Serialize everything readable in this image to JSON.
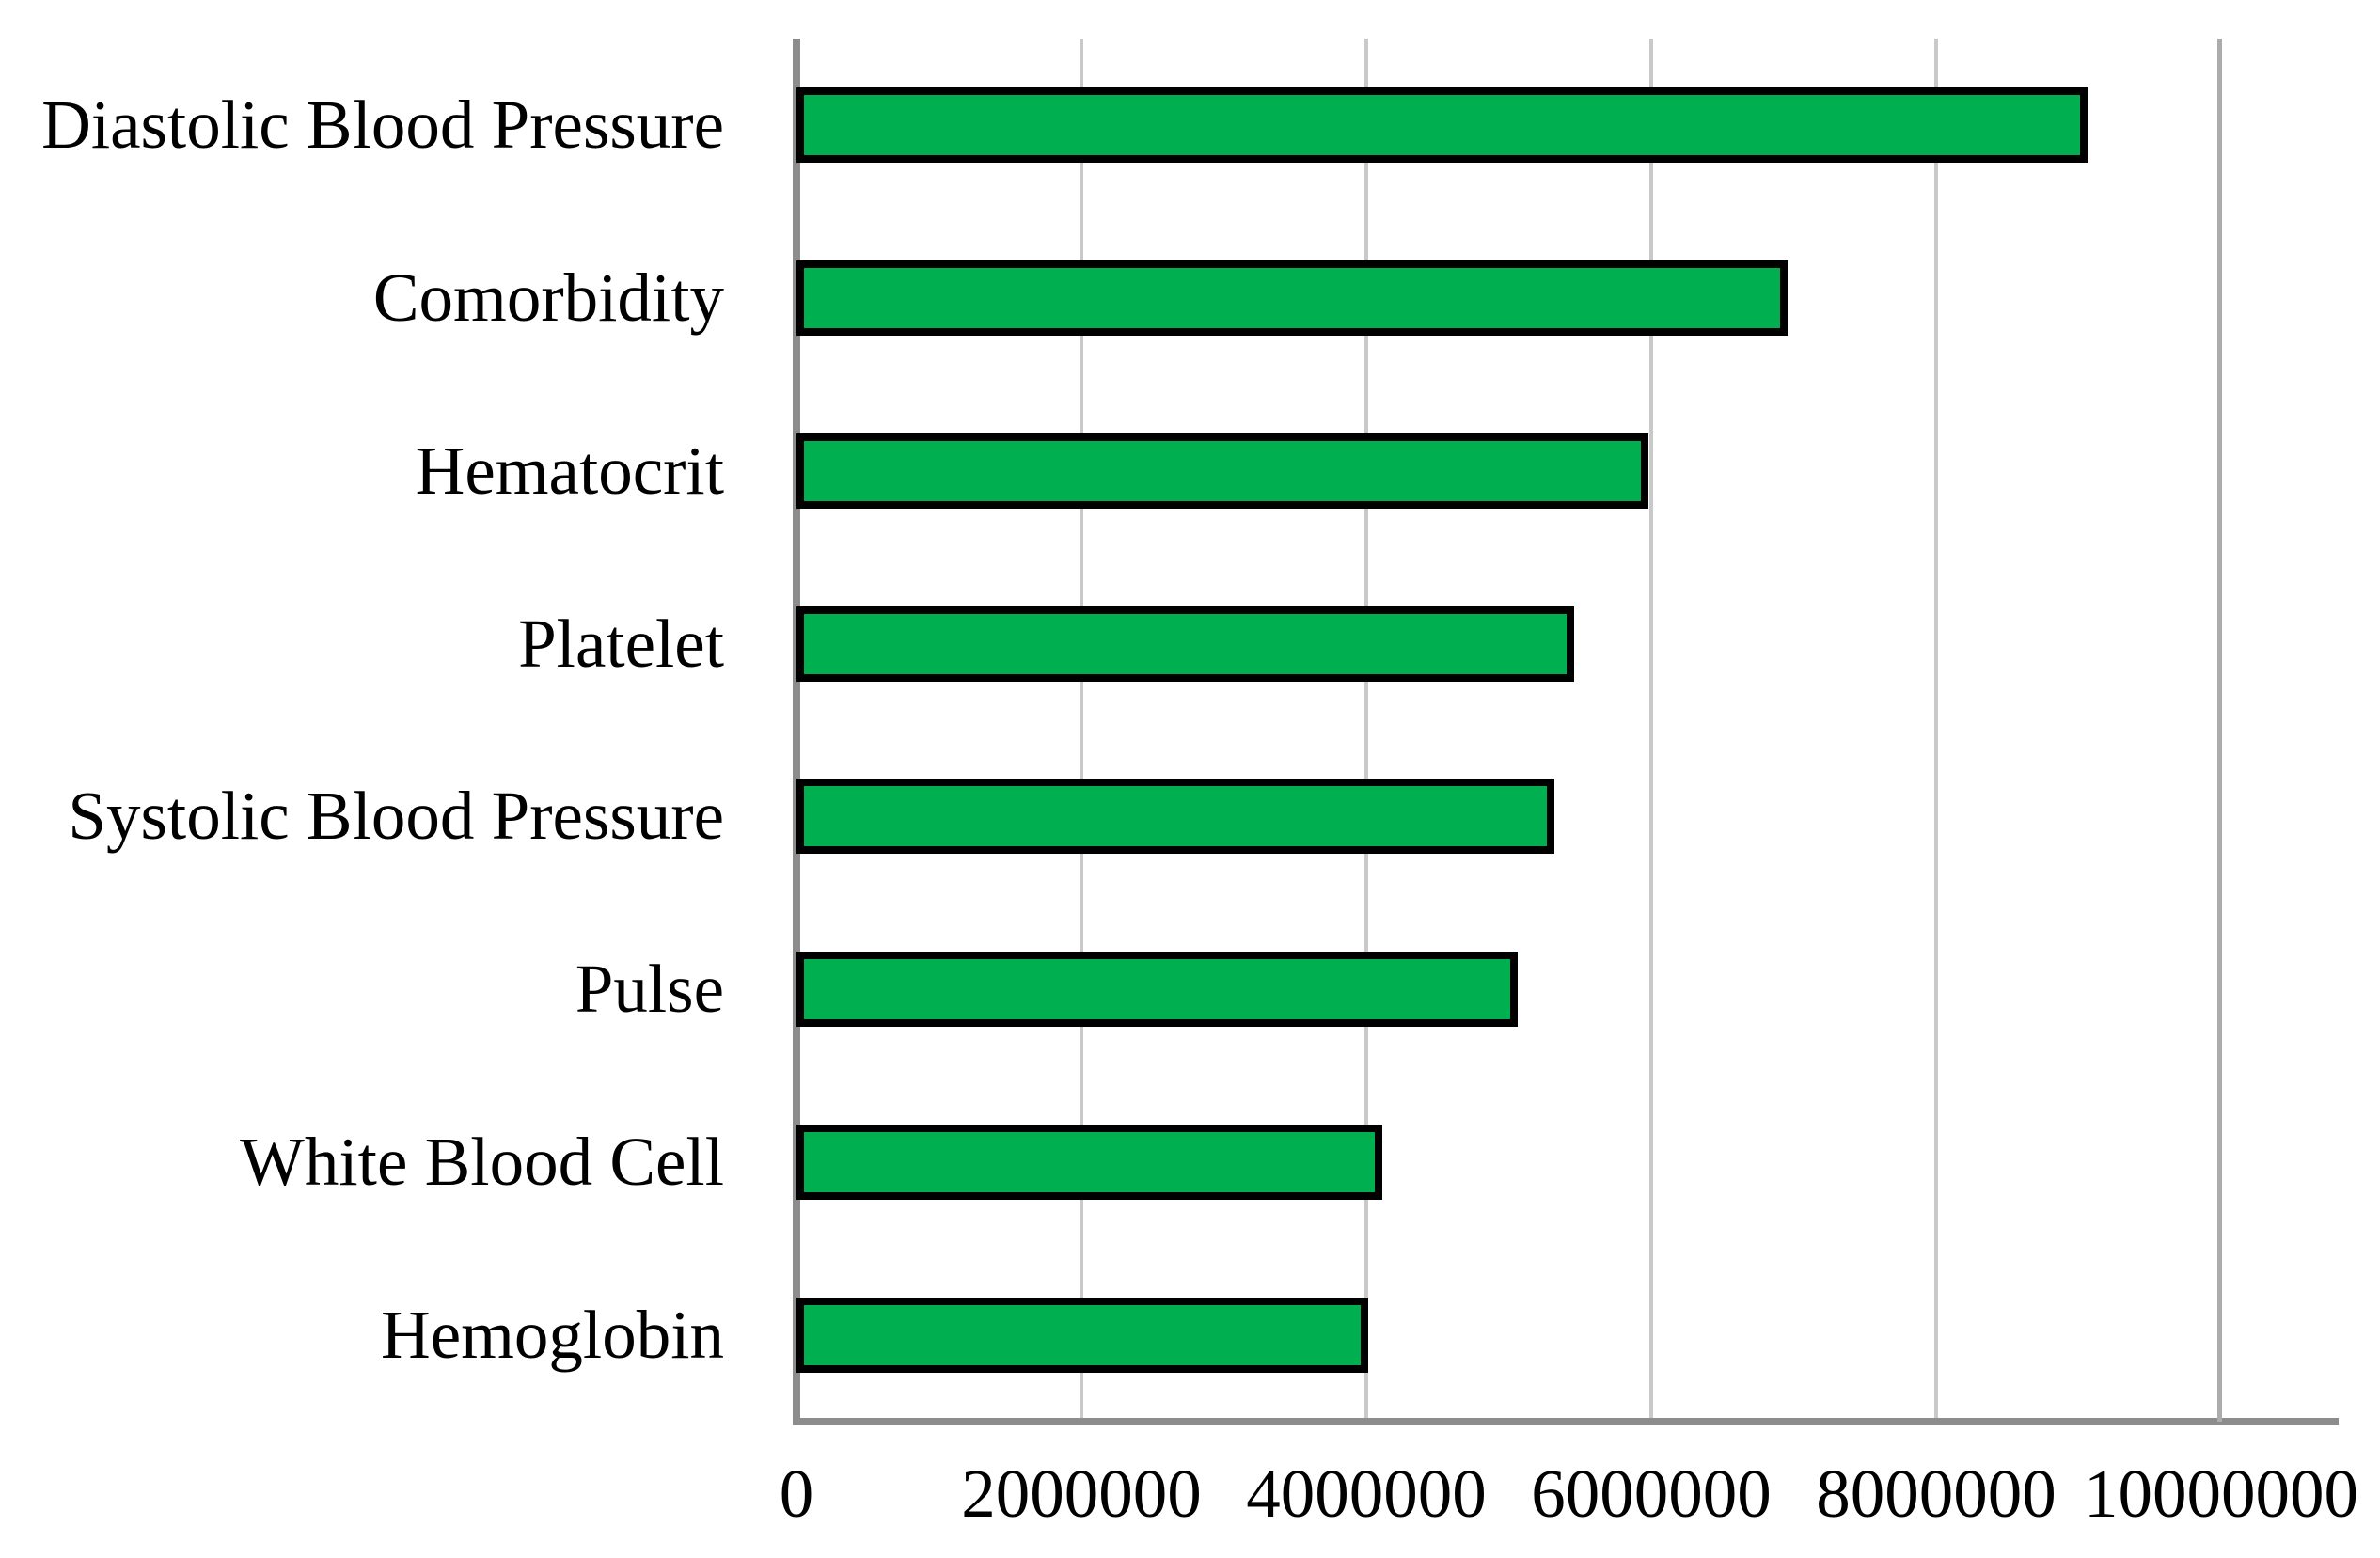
{
  "chart_data": {
    "type": "bar",
    "orientation": "horizontal",
    "title": "",
    "xlabel": "",
    "ylabel": "",
    "categories": [
      "Diastolic Blood Pressure",
      "Comorbidity",
      "Hematocrit",
      "Platelet",
      "Systolic Blood Pressure",
      "Pulse",
      "White Blood Cell",
      "Hemoglobin"
    ],
    "values": [
      9060000,
      6960000,
      5980000,
      5460000,
      5320000,
      5060000,
      4110000,
      4010000
    ],
    "xlim": [
      0,
      10000000
    ],
    "x_tick_values": [
      0,
      2000000,
      4000000,
      6000000,
      8000000,
      10000000
    ],
    "x_tick_labels": [
      "0",
      "2000000",
      "4000000",
      "6000000",
      "8000000",
      "10000000"
    ],
    "grid": "vertical-major",
    "legend": "none",
    "colors": {
      "bar_fill": "#00B050",
      "bar_border": "#000000",
      "gridline": "#C9C9C9",
      "axis_line": "#8C8C8C",
      "plot_right_border": "#ACACAC",
      "background": "#FFFFFF",
      "text": "#000000"
    }
  }
}
